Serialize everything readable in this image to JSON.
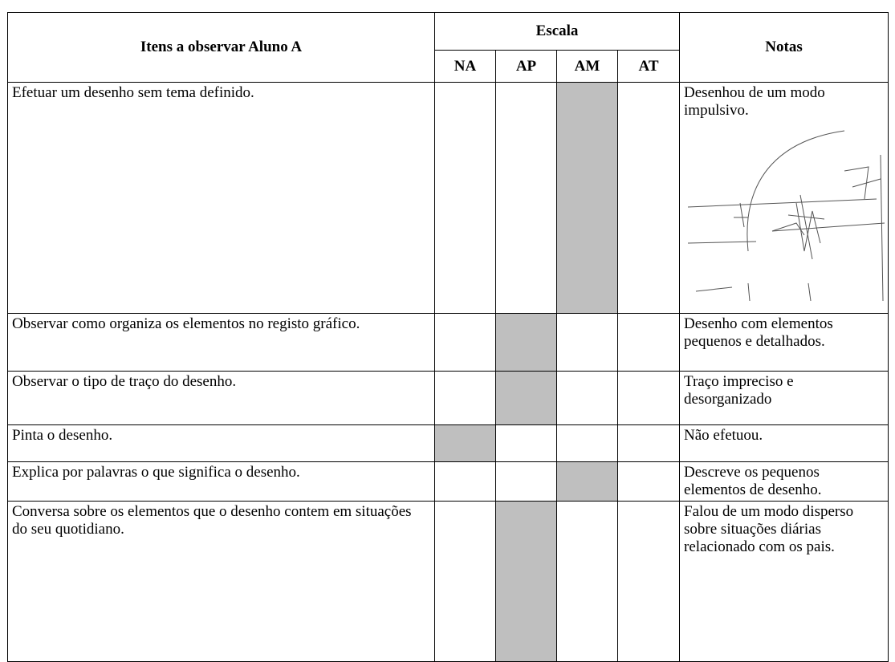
{
  "table": {
    "header": {
      "item": "Itens a observar Aluno A",
      "scale": "Escala",
      "levels": [
        "NA",
        "AP",
        "AM",
        "AT"
      ],
      "notes": "Notas"
    },
    "rows": [
      {
        "item": "Efetuar um desenho sem tema definido.",
        "shaded": 2,
        "notes": "Desenhou de um modo impulsivo."
      },
      {
        "item": "Observar como organiza os elementos no registo gráfico.",
        "shaded": 1,
        "notes": "Desenho com elementos pequenos e detalhados."
      },
      {
        "item": "Observar o tipo de traço do desenho.",
        "shaded": 1,
        "notes": "Traço impreciso e desorganizado"
      },
      {
        "item": "Pinta o desenho.",
        "shaded": 0,
        "notes": "Não efetuou."
      },
      {
        "item": "Explica por palavras o que significa o desenho.",
        "shaded": 2,
        "notes": "Descreve os pequenos elementos de desenho."
      },
      {
        "item": "Conversa sobre os elementos que o desenho contem em situações do seu quotidiano.",
        "shaded": 1,
        "notes": "Falou de um modo disperso sobre situações diárias relacionado com os pais."
      }
    ]
  }
}
